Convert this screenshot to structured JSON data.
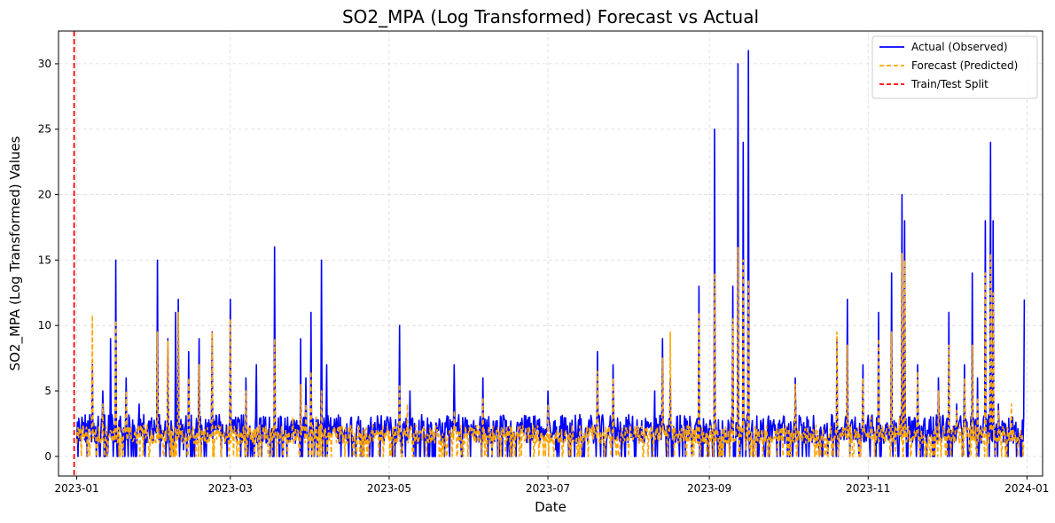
{
  "chart_data": {
    "type": "line",
    "title": "SO2_MPA (Log Transformed) Forecast vs Actual",
    "xlabel": "Date",
    "ylabel": "SO2_MPA (Log Transformed) Values",
    "x_ticks": [
      "2023-01-01",
      "2023-03-01",
      "2023-05-01",
      "2023-07-01",
      "2023-09-01",
      "2023-11-01",
      "2024-01-01"
    ],
    "x_tick_labels": [
      "2023-01",
      "2023-03",
      "2023-05",
      "2023-07",
      "2023-09",
      "2023-11",
      "2024-01"
    ],
    "xlim": [
      "2022-12-25",
      "2024-01-07"
    ],
    "ylim": [
      -1.5,
      32.5
    ],
    "y_ticks": [
      0,
      5,
      10,
      15,
      20,
      25,
      30
    ],
    "grid": true,
    "legend_position": "upper right",
    "split_date": "2022-12-31",
    "series": [
      {
        "name": "Actual (Observed)",
        "color": "#0000ff",
        "style": "solid",
        "points": [
          [
            "2023-01-01",
            1.0
          ],
          [
            "2023-01-03",
            3.0
          ],
          [
            "2023-01-05",
            0.0
          ],
          [
            "2023-01-07",
            7.0
          ],
          [
            "2023-01-09",
            2.0
          ],
          [
            "2023-01-11",
            5.0
          ],
          [
            "2023-01-13",
            0.5
          ],
          [
            "2023-01-14",
            9.0
          ],
          [
            "2023-01-15",
            0.0
          ],
          [
            "2023-01-16",
            15.0
          ],
          [
            "2023-01-18",
            2.0
          ],
          [
            "2023-01-20",
            6.0
          ],
          [
            "2023-01-22",
            0.0
          ],
          [
            "2023-01-25",
            4.0
          ],
          [
            "2023-01-27",
            0.5
          ],
          [
            "2023-01-30",
            1.0
          ],
          [
            "2023-02-01",
            15.0
          ],
          [
            "2023-02-03",
            2.0
          ],
          [
            "2023-02-05",
            9.0
          ],
          [
            "2023-02-07",
            1.0
          ],
          [
            "2023-02-08",
            11.0
          ],
          [
            "2023-02-09",
            12.0
          ],
          [
            "2023-02-11",
            0.5
          ],
          [
            "2023-02-13",
            8.0
          ],
          [
            "2023-02-15",
            1.0
          ],
          [
            "2023-02-17",
            9.0
          ],
          [
            "2023-02-19",
            0.0
          ],
          [
            "2023-02-22",
            9.5
          ],
          [
            "2023-02-24",
            2.0
          ],
          [
            "2023-02-27",
            1.0
          ],
          [
            "2023-03-01",
            12.0
          ],
          [
            "2023-03-03",
            3.0
          ],
          [
            "2023-03-05",
            0.0
          ],
          [
            "2023-03-07",
            6.0
          ],
          [
            "2023-03-09",
            1.0
          ],
          [
            "2023-03-11",
            7.0
          ],
          [
            "2023-03-13",
            0.0
          ],
          [
            "2023-03-16",
            3.0
          ],
          [
            "2023-03-18",
            16.0
          ],
          [
            "2023-03-20",
            0.0
          ],
          [
            "2023-03-23",
            3.0
          ],
          [
            "2023-03-26",
            1.0
          ],
          [
            "2023-03-28",
            9.0
          ],
          [
            "2023-03-30",
            6.0
          ],
          [
            "2023-04-01",
            11.0
          ],
          [
            "2023-04-03",
            3.0
          ],
          [
            "2023-04-05",
            15.0
          ],
          [
            "2023-04-07",
            7.0
          ],
          [
            "2023-04-09",
            2.0
          ],
          [
            "2023-04-12",
            1.0
          ],
          [
            "2023-04-15",
            1.0
          ],
          [
            "2023-04-18",
            1.0
          ],
          [
            "2023-04-22",
            1.0
          ],
          [
            "2023-04-26",
            2.0
          ],
          [
            "2023-04-29",
            1.0
          ],
          [
            "2023-05-02",
            1.5
          ],
          [
            "2023-05-05",
            10.0
          ],
          [
            "2023-05-07",
            2.0
          ],
          [
            "2023-05-09",
            5.0
          ],
          [
            "2023-05-12",
            1.0
          ],
          [
            "2023-05-16",
            0.0
          ],
          [
            "2023-05-20",
            2.0
          ],
          [
            "2023-05-24",
            1.0
          ],
          [
            "2023-05-26",
            7.0
          ],
          [
            "2023-05-29",
            0.0
          ],
          [
            "2023-06-02",
            2.0
          ],
          [
            "2023-06-06",
            6.0
          ],
          [
            "2023-06-09",
            1.0
          ],
          [
            "2023-06-12",
            0.0
          ],
          [
            "2023-06-16",
            2.0
          ],
          [
            "2023-06-20",
            1.0
          ],
          [
            "2023-06-24",
            3.0
          ],
          [
            "2023-06-28",
            1.0
          ],
          [
            "2023-07-01",
            5.0
          ],
          [
            "2023-07-04",
            0.5
          ],
          [
            "2023-07-08",
            2.0
          ],
          [
            "2023-07-12",
            1.0
          ],
          [
            "2023-07-16",
            2.0
          ],
          [
            "2023-07-20",
            8.0
          ],
          [
            "2023-07-23",
            1.0
          ],
          [
            "2023-07-26",
            7.0
          ],
          [
            "2023-07-30",
            1.0
          ],
          [
            "2023-08-03",
            2.0
          ],
          [
            "2023-08-07",
            1.0
          ],
          [
            "2023-08-11",
            5.0
          ],
          [
            "2023-08-14",
            9.0
          ],
          [
            "2023-08-17",
            6.0
          ],
          [
            "2023-08-20",
            1.0
          ],
          [
            "2023-08-24",
            2.0
          ],
          [
            "2023-08-28",
            13.0
          ],
          [
            "2023-08-30",
            1.0
          ],
          [
            "2023-09-01",
            2.0
          ],
          [
            "2023-09-03",
            25.0
          ],
          [
            "2023-09-05",
            2.0
          ],
          [
            "2023-09-07",
            0.0
          ],
          [
            "2023-09-10",
            13.0
          ],
          [
            "2023-09-12",
            30.0
          ],
          [
            "2023-09-13",
            2.0
          ],
          [
            "2023-09-14",
            24.0
          ],
          [
            "2023-09-15",
            0.0
          ],
          [
            "2023-09-16",
            31.0
          ],
          [
            "2023-09-18",
            1.0
          ],
          [
            "2023-09-22",
            0.5
          ],
          [
            "2023-09-26",
            2.0
          ],
          [
            "2023-09-30",
            1.0
          ],
          [
            "2023-10-04",
            6.0
          ],
          [
            "2023-10-08",
            1.0
          ],
          [
            "2023-10-12",
            1.0
          ],
          [
            "2023-10-16",
            2.0
          ],
          [
            "2023-10-20",
            9.0
          ],
          [
            "2023-10-22",
            2.0
          ],
          [
            "2023-10-24",
            12.0
          ],
          [
            "2023-10-27",
            3.0
          ],
          [
            "2023-10-30",
            7.0
          ],
          [
            "2023-11-02",
            3.0
          ],
          [
            "2023-11-05",
            11.0
          ],
          [
            "2023-11-07",
            1.0
          ],
          [
            "2023-11-10",
            14.0
          ],
          [
            "2023-11-12",
            2.0
          ],
          [
            "2023-11-14",
            20.0
          ],
          [
            "2023-11-15",
            18.0
          ],
          [
            "2023-11-17",
            3.0
          ],
          [
            "2023-11-20",
            7.0
          ],
          [
            "2023-11-24",
            2.0
          ],
          [
            "2023-11-28",
            6.0
          ],
          [
            "2023-12-02",
            11.0
          ],
          [
            "2023-12-05",
            4.0
          ],
          [
            "2023-12-08",
            7.0
          ],
          [
            "2023-12-11",
            14.0
          ],
          [
            "2023-12-13",
            6.0
          ],
          [
            "2023-12-16",
            18.0
          ],
          [
            "2023-12-18",
            24.0
          ],
          [
            "2023-12-19",
            18.0
          ],
          [
            "2023-12-21",
            4.0
          ],
          [
            "2023-12-24",
            2.0
          ],
          [
            "2023-12-26",
            3.0
          ],
          [
            "2023-12-29",
            1.0
          ],
          [
            "2023-12-31",
            12.0
          ]
        ]
      },
      {
        "name": "Forecast (Predicted)",
        "color": "#ffa500",
        "style": "dashed",
        "points": [
          [
            "2023-01-01",
            1.0
          ],
          [
            "2023-01-03",
            2.0
          ],
          [
            "2023-01-05",
            1.0
          ],
          [
            "2023-01-07",
            10.8
          ],
          [
            "2023-01-09",
            1.5
          ],
          [
            "2023-01-11",
            4.0
          ],
          [
            "2023-01-13",
            1.0
          ],
          [
            "2023-01-16",
            10.4
          ],
          [
            "2023-01-18",
            1.5
          ],
          [
            "2023-01-20",
            5.0
          ],
          [
            "2023-01-24",
            1.0
          ],
          [
            "2023-01-30",
            1.0
          ],
          [
            "2023-02-01",
            9.5
          ],
          [
            "2023-02-03",
            2.0
          ],
          [
            "2023-02-05",
            8.8
          ],
          [
            "2023-02-07",
            1.0
          ],
          [
            "2023-02-09",
            11.0
          ],
          [
            "2023-02-11",
            1.0
          ],
          [
            "2023-02-13",
            6.0
          ],
          [
            "2023-02-15",
            1.0
          ],
          [
            "2023-02-17",
            7.0
          ],
          [
            "2023-02-20",
            1.0
          ],
          [
            "2023-02-22",
            9.5
          ],
          [
            "2023-02-27",
            1.0
          ],
          [
            "2023-03-01",
            10.5
          ],
          [
            "2023-03-03",
            2.0
          ],
          [
            "2023-03-07",
            5.0
          ],
          [
            "2023-03-10",
            2.0
          ],
          [
            "2023-03-13",
            1.0
          ],
          [
            "2023-03-18",
            9.0
          ],
          [
            "2023-03-20",
            1.0
          ],
          [
            "2023-03-25",
            3.0
          ],
          [
            "2023-03-28",
            5.5
          ],
          [
            "2023-03-30",
            4.0
          ],
          [
            "2023-04-01",
            6.5
          ],
          [
            "2023-04-03",
            3.0
          ],
          [
            "2023-04-05",
            5.0
          ],
          [
            "2023-04-09",
            1.5
          ],
          [
            "2023-04-15",
            1.0
          ],
          [
            "2023-04-22",
            1.0
          ],
          [
            "2023-04-29",
            1.0
          ],
          [
            "2023-05-02",
            1.5
          ],
          [
            "2023-05-05",
            5.5
          ],
          [
            "2023-05-08",
            4.0
          ],
          [
            "2023-05-12",
            1.0
          ],
          [
            "2023-05-18",
            1.5
          ],
          [
            "2023-05-26",
            3.5
          ],
          [
            "2023-05-30",
            1.0
          ],
          [
            "2023-06-04",
            1.5
          ],
          [
            "2023-06-06",
            4.5
          ],
          [
            "2023-06-10",
            1.0
          ],
          [
            "2023-06-16",
            1.5
          ],
          [
            "2023-06-24",
            2.0
          ],
          [
            "2023-06-28",
            1.0
          ],
          [
            "2023-07-01",
            4.0
          ],
          [
            "2023-07-05",
            1.0
          ],
          [
            "2023-07-12",
            1.5
          ],
          [
            "2023-07-20",
            6.5
          ],
          [
            "2023-07-23",
            1.0
          ],
          [
            "2023-07-26",
            6.0
          ],
          [
            "2023-07-30",
            1.0
          ],
          [
            "2023-08-05",
            1.0
          ],
          [
            "2023-08-11",
            1.5
          ],
          [
            "2023-08-14",
            7.5
          ],
          [
            "2023-08-17",
            9.5
          ],
          [
            "2023-08-20",
            1.0
          ],
          [
            "2023-08-25",
            1.5
          ],
          [
            "2023-08-28",
            11.0
          ],
          [
            "2023-08-30",
            1.0
          ],
          [
            "2023-09-02",
            2.0
          ],
          [
            "2023-09-03",
            14.0
          ],
          [
            "2023-09-05",
            1.5
          ],
          [
            "2023-09-08",
            1.0
          ],
          [
            "2023-09-10",
            10.5
          ],
          [
            "2023-09-12",
            16.0
          ],
          [
            "2023-09-14",
            15.0
          ],
          [
            "2023-09-15",
            0.5
          ],
          [
            "2023-09-16",
            13.5
          ],
          [
            "2023-09-18",
            1.0
          ],
          [
            "2023-09-25",
            1.0
          ],
          [
            "2023-10-04",
            5.5
          ],
          [
            "2023-10-08",
            1.0
          ],
          [
            "2023-10-16",
            1.5
          ],
          [
            "2023-10-20",
            9.5
          ],
          [
            "2023-10-22",
            1.5
          ],
          [
            "2023-10-24",
            8.5
          ],
          [
            "2023-10-27",
            2.0
          ],
          [
            "2023-10-30",
            6.0
          ],
          [
            "2023-11-02",
            3.0
          ],
          [
            "2023-11-05",
            9.0
          ],
          [
            "2023-11-08",
            2.0
          ],
          [
            "2023-11-10",
            9.5
          ],
          [
            "2023-11-13",
            3.0
          ],
          [
            "2023-11-14",
            15.5
          ],
          [
            "2023-11-15",
            15.0
          ],
          [
            "2023-11-17",
            2.0
          ],
          [
            "2023-11-20",
            6.5
          ],
          [
            "2023-11-24",
            1.5
          ],
          [
            "2023-11-28",
            5.0
          ],
          [
            "2023-12-02",
            8.5
          ],
          [
            "2023-12-05",
            3.5
          ],
          [
            "2023-12-08",
            6.0
          ],
          [
            "2023-12-11",
            8.5
          ],
          [
            "2023-12-13",
            4.5
          ],
          [
            "2023-12-16",
            14.0
          ],
          [
            "2023-12-18",
            15.5
          ],
          [
            "2023-12-19",
            12.5
          ],
          [
            "2023-12-21",
            3.5
          ],
          [
            "2023-12-24",
            1.0
          ],
          [
            "2023-12-26",
            4.0
          ],
          [
            "2023-12-29",
            1.0
          ],
          [
            "2023-12-31",
            1.0
          ]
        ]
      },
      {
        "name": "Train/Test Split",
        "color": "#ff0000",
        "style": "dashed"
      }
    ]
  }
}
